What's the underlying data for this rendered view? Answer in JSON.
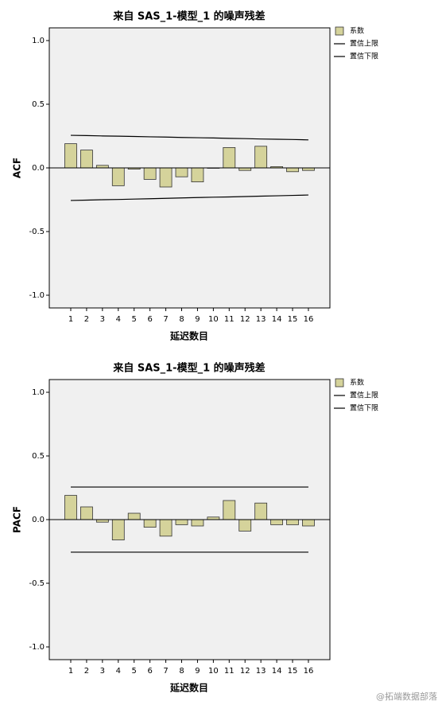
{
  "chart_data": [
    {
      "type": "bar",
      "title": "来自 SAS_1-模型_1 的噪声残差",
      "x_label": "延迟数目",
      "y_label": "ACF",
      "categories": [
        "1",
        "2",
        "3",
        "4",
        "5",
        "6",
        "7",
        "8",
        "9",
        "10",
        "11",
        "12",
        "13",
        "14",
        "15",
        "16"
      ],
      "series": [
        {
          "name": "系数",
          "color": "#d5d39b",
          "kind": "bar",
          "values": [
            0.19,
            0.14,
            0.02,
            -0.14,
            -0.01,
            -0.09,
            -0.15,
            -0.07,
            -0.11,
            0.0,
            0.16,
            -0.02,
            0.17,
            0.01,
            -0.03,
            -0.02
          ]
        },
        {
          "name": "置信上限",
          "color": "#000000",
          "kind": "line",
          "values": [
            0.256,
            0.254,
            0.251,
            0.249,
            0.247,
            0.244,
            0.242,
            0.239,
            0.237,
            0.235,
            0.232,
            0.23,
            0.227,
            0.225,
            0.223,
            0.22
          ]
        },
        {
          "name": "置信下限",
          "color": "#000000",
          "kind": "line",
          "values": [
            -0.256,
            -0.253,
            -0.25,
            -0.248,
            -0.245,
            -0.242,
            -0.239,
            -0.236,
            -0.233,
            -0.23,
            -0.228,
            -0.225,
            -0.222,
            -0.219,
            -0.216,
            -0.213
          ]
        }
      ],
      "ylim": [
        -1.1,
        1.1
      ],
      "yticks": [
        {
          "value": -1,
          "label": "-1.0"
        },
        {
          "value": -0.5,
          "label": "-0.5"
        },
        {
          "value": 0,
          "label": "0.0"
        },
        {
          "value": 0.5,
          "label": "0.5"
        },
        {
          "value": 1,
          "label": "1.0"
        }
      ]
    },
    {
      "type": "bar",
      "title": "来自 SAS_1-模型_1 的噪声残差",
      "x_label": "延迟数目",
      "y_label": "PACF",
      "categories": [
        "1",
        "2",
        "3",
        "4",
        "5",
        "6",
        "7",
        "8",
        "9",
        "10",
        "11",
        "12",
        "13",
        "14",
        "15",
        "16"
      ],
      "series": [
        {
          "name": "系数",
          "color": "#d5d39b",
          "kind": "bar",
          "values": [
            0.19,
            0.1,
            -0.02,
            -0.16,
            0.05,
            -0.06,
            -0.13,
            -0.04,
            -0.05,
            0.02,
            0.15,
            -0.09,
            0.13,
            -0.04,
            -0.04,
            -0.05
          ]
        },
        {
          "name": "置信上限",
          "color": "#000000",
          "kind": "line",
          "values": [
            0.256,
            0.256,
            0.256,
            0.256,
            0.256,
            0.256,
            0.256,
            0.256,
            0.256,
            0.256,
            0.256,
            0.256,
            0.256,
            0.256,
            0.256,
            0.256
          ]
        },
        {
          "name": "置信下限",
          "color": "#000000",
          "kind": "line",
          "values": [
            -0.256,
            -0.256,
            -0.256,
            -0.256,
            -0.256,
            -0.256,
            -0.256,
            -0.256,
            -0.256,
            -0.256,
            -0.256,
            -0.256,
            -0.256,
            -0.256,
            -0.256,
            -0.256
          ]
        }
      ],
      "ylim": [
        -1.1,
        1.1
      ],
      "yticks": [
        {
          "value": -1,
          "label": "-1.0"
        },
        {
          "value": -0.5,
          "label": "-0.5"
        },
        {
          "value": 0,
          "label": "0.0"
        },
        {
          "value": 0.5,
          "label": "0.5"
        },
        {
          "value": 1,
          "label": "1.0"
        }
      ]
    }
  ],
  "watermark": "@拓端数据部落"
}
